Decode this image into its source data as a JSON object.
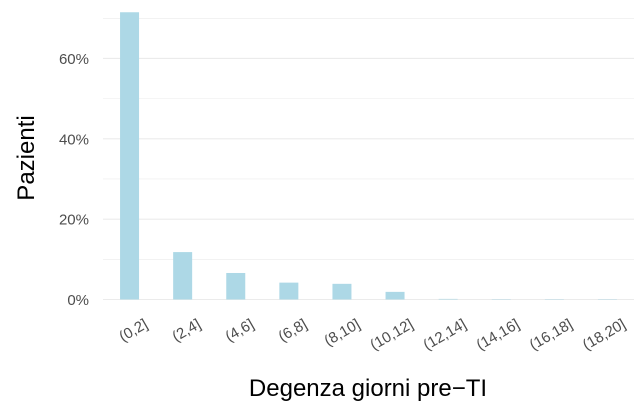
{
  "chart_data": {
    "type": "bar",
    "xlabel": "Degenza giorni pre−TI",
    "ylabel": "Pazienti",
    "categories": [
      "(0,2]",
      "(2,4]",
      "(4,6]",
      "(6,8]",
      "(8,10]",
      "(10,12]",
      "(12,14]",
      "(14,16]",
      "(16,18]",
      "(18,20]"
    ],
    "values": [
      71.5,
      11.8,
      6.6,
      4.2,
      3.9,
      1.9,
      0.15,
      0.1,
      0.1,
      0.1
    ],
    "ylim": [
      0,
      70
    ],
    "yticks": [
      0,
      20,
      40,
      60
    ],
    "ytick_labels": [
      "0%",
      "20%",
      "40%",
      "60%"
    ],
    "grid": true,
    "bar_color": "#add8e6",
    "grid_color": "#ebebeb"
  }
}
